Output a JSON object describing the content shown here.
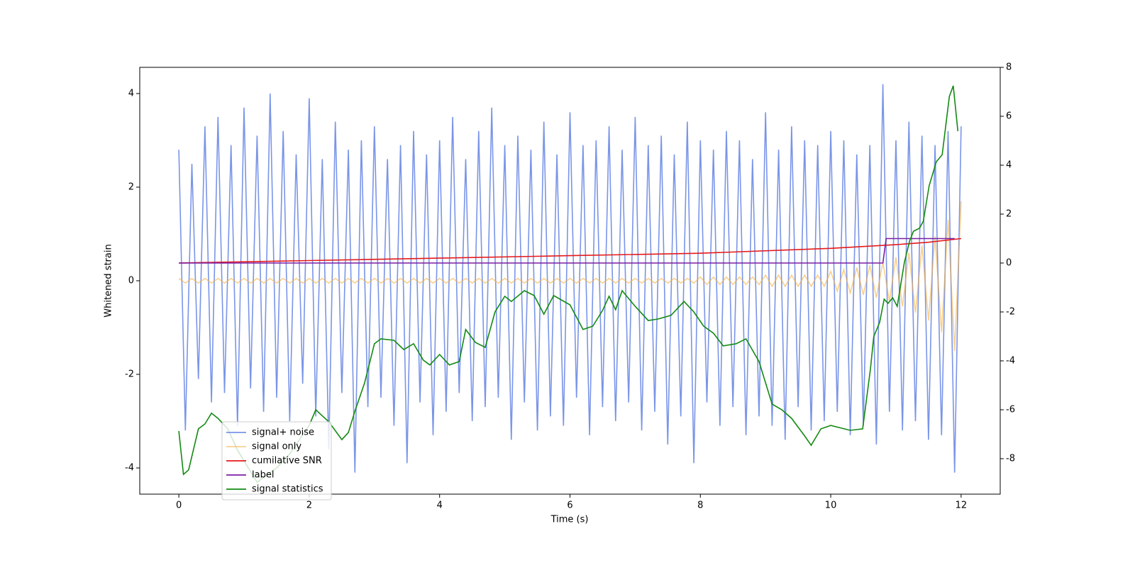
{
  "chart_data": {
    "type": "line",
    "xlabel": "Time (s)",
    "ylabel": "Whitened strain",
    "xlim": [
      -0.6,
      12.6
    ],
    "ylim": [
      -4.56,
      4.56
    ],
    "y2lim": [
      -9.45,
      8.0
    ],
    "xticks": [
      0,
      2,
      4,
      6,
      8,
      10,
      12
    ],
    "yticks": [
      -4,
      -2,
      0,
      2,
      4
    ],
    "y2ticks": [
      -8,
      -6,
      -4,
      -2,
      0,
      2,
      4,
      6,
      8
    ],
    "legend": "lower left",
    "x": [
      0,
      0.1,
      0.2,
      0.3,
      0.4,
      0.5,
      0.6,
      0.7,
      0.8,
      0.9,
      1,
      1.1,
      1.2,
      1.3,
      1.4,
      1.5,
      1.6,
      1.7,
      1.8,
      1.9,
      2,
      2.1,
      2.2,
      2.3,
      2.4,
      2.5,
      2.6,
      2.7,
      2.8,
      2.9,
      3,
      3.1,
      3.2,
      3.3,
      3.4,
      3.5,
      3.6,
      3.7,
      3.8,
      3.9,
      4,
      4.1,
      4.2,
      4.3,
      4.4,
      4.5,
      4.6,
      4.7,
      4.8,
      4.9,
      5,
      5.1,
      5.2,
      5.3,
      5.4,
      5.5,
      5.6,
      5.7,
      5.8,
      5.9,
      6,
      6.1,
      6.2,
      6.3,
      6.4,
      6.5,
      6.6,
      6.7,
      6.8,
      6.9,
      7,
      7.1,
      7.2,
      7.3,
      7.4,
      7.5,
      7.6,
      7.7,
      7.8,
      7.9,
      8,
      8.1,
      8.2,
      8.3,
      8.4,
      8.5,
      8.6,
      8.7,
      8.8,
      8.9,
      9,
      9.1,
      9.2,
      9.3,
      9.4,
      9.5,
      9.6,
      9.7,
      9.8,
      9.9,
      10,
      10.1,
      10.2,
      10.3,
      10.4,
      10.5,
      10.6,
      10.7,
      10.8,
      10.9,
      11,
      11.1,
      11.2,
      11.3,
      11.4,
      11.5,
      11.6,
      11.7,
      11.8,
      11.9,
      12
    ],
    "series": [
      {
        "name": "signal+ noise",
        "color": "#7a95e8",
        "values": [
          2.8,
          -3.2,
          2.5,
          -2.1,
          3.3,
          -2.6,
          3.5,
          -2.4,
          2.9,
          -3.1,
          3.7,
          -2.3,
          3.1,
          -2.8,
          4.0,
          -2.5,
          3.2,
          -3.0,
          2.7,
          -2.2,
          3.9,
          -2.9,
          2.6,
          -3.6,
          3.4,
          -2.4,
          2.8,
          -4.1,
          3.0,
          -2.7,
          3.3,
          -2.5,
          2.6,
          -3.1,
          2.9,
          -3.9,
          3.2,
          -2.6,
          2.7,
          -3.3,
          3.0,
          -2.8,
          3.5,
          -2.4,
          2.6,
          -3.0,
          3.2,
          -2.7,
          3.7,
          -2.5,
          2.9,
          -3.4,
          3.1,
          -2.6,
          2.8,
          -3.2,
          3.4,
          -2.9,
          2.7,
          -3.1,
          3.6,
          -2.5,
          2.9,
          -3.3,
          3.0,
          -2.7,
          3.3,
          -3.0,
          2.8,
          -2.6,
          3.5,
          -3.2,
          2.9,
          -2.8,
          3.1,
          -3.5,
          2.7,
          -2.9,
          3.4,
          -3.9,
          3.0,
          -2.6,
          2.8,
          -3.1,
          3.2,
          -2.7,
          3.0,
          -3.3,
          2.6,
          -2.9,
          3.6,
          -3.1,
          2.8,
          -3.4,
          3.3,
          -2.7,
          3.0,
          -3.2,
          2.9,
          -3.0,
          3.2,
          -2.8,
          3.0,
          -3.3,
          2.7,
          -3.1,
          2.9,
          -3.5,
          4.2,
          -2.8,
          3.0,
          -3.2,
          3.4,
          -3.0,
          3.1,
          -3.4,
          2.9,
          -3.3,
          3.2,
          -4.1,
          3.3
        ]
      },
      {
        "name": "signal only",
        "color": "#f5b041",
        "values": [
          0.05,
          -0.05,
          0.05,
          -0.05,
          0.05,
          -0.05,
          0.05,
          -0.05,
          0.05,
          -0.05,
          0.05,
          -0.05,
          0.05,
          -0.05,
          0.05,
          -0.05,
          0.05,
          -0.05,
          0.05,
          -0.05,
          0.05,
          -0.05,
          0.05,
          -0.05,
          0.05,
          -0.05,
          0.05,
          -0.05,
          0.05,
          -0.05,
          0.05,
          -0.05,
          0.05,
          -0.05,
          0.05,
          -0.05,
          0.05,
          -0.05,
          0.05,
          -0.05,
          0.05,
          -0.05,
          0.05,
          -0.05,
          0.05,
          -0.05,
          0.05,
          -0.05,
          0.05,
          -0.05,
          0.05,
          -0.05,
          0.05,
          -0.05,
          0.05,
          -0.05,
          0.05,
          -0.05,
          0.05,
          -0.05,
          0.05,
          -0.05,
          0.05,
          -0.05,
          0.05,
          -0.05,
          0.05,
          -0.05,
          0.05,
          -0.05,
          0.05,
          -0.05,
          0.05,
          -0.05,
          0.05,
          -0.05,
          0.05,
          -0.05,
          0.05,
          -0.05,
          0.08,
          -0.08,
          0.08,
          -0.08,
          0.08,
          -0.08,
          0.08,
          -0.08,
          0.08,
          -0.08,
          0.12,
          -0.12,
          0.12,
          -0.12,
          0.12,
          -0.12,
          0.12,
          -0.12,
          0.12,
          -0.12,
          0.2,
          -0.22,
          0.24,
          -0.26,
          0.28,
          -0.3,
          0.33,
          -0.36,
          0.4,
          -0.44,
          0.5,
          -0.55,
          0.6,
          -0.68,
          0.75,
          -0.85,
          0.95,
          -1.1,
          1.3,
          -1.5,
          1.7
        ]
      },
      {
        "name": "cumilative SNR",
        "color": "#e41a1c",
        "axis": "y2",
        "x": [
          0,
          2,
          4,
          6,
          8,
          10,
          11,
          11.5,
          12
        ],
        "values": [
          0,
          0.1,
          0.2,
          0.3,
          0.4,
          0.6,
          0.75,
          0.85,
          1.0
        ]
      },
      {
        "name": "label",
        "color": "#7b1fa2",
        "axis": "y2",
        "x": [
          0,
          10.8,
          10.85,
          11.9
        ],
        "values": [
          0,
          0,
          1,
          1
        ]
      },
      {
        "name": "signal statistics",
        "color": "#138a13",
        "axis": "y2",
        "x": [
          0,
          0.07,
          0.15,
          0.3,
          0.4,
          0.5,
          0.6,
          0.75,
          0.9,
          1.0,
          1.2,
          1.5,
          1.7,
          2.0,
          2.1,
          2.3,
          2.5,
          2.6,
          2.7,
          2.85,
          3.0,
          3.1,
          3.3,
          3.45,
          3.6,
          3.75,
          3.85,
          4.0,
          4.15,
          4.3,
          4.4,
          4.55,
          4.7,
          4.85,
          5.0,
          5.1,
          5.3,
          5.45,
          5.6,
          5.75,
          6.0,
          6.2,
          6.35,
          6.5,
          6.6,
          6.7,
          6.8,
          7.0,
          7.2,
          7.35,
          7.55,
          7.75,
          7.9,
          8.05,
          8.2,
          8.35,
          8.55,
          8.7,
          8.9,
          9.1,
          9.25,
          9.4,
          9.6,
          9.7,
          9.85,
          10.0,
          10.3,
          10.49,
          10.61,
          10.66,
          10.75,
          10.82,
          10.88,
          10.95,
          11.02,
          11.13,
          11.21,
          11.27,
          11.36,
          11.42,
          11.51,
          11.62,
          11.71,
          11.82,
          11.88,
          11.95
        ],
        "values": [
          -6.87,
          -8.64,
          -8.46,
          -6.78,
          -6.58,
          -6.14,
          -6.35,
          -6.78,
          -7.65,
          -8.09,
          -8.96,
          -8.38,
          -7.8,
          -6.64,
          -6.0,
          -6.49,
          -7.22,
          -6.93,
          -6.06,
          -4.9,
          -3.3,
          -3.1,
          -3.16,
          -3.54,
          -3.3,
          -3.97,
          -4.17,
          -3.74,
          -4.17,
          -4.03,
          -2.72,
          -3.25,
          -3.45,
          -2.0,
          -1.36,
          -1.57,
          -1.13,
          -1.33,
          -2.09,
          -1.33,
          -1.71,
          -2.72,
          -2.58,
          -1.94,
          -1.36,
          -1.91,
          -1.13,
          -1.77,
          -2.35,
          -2.29,
          -2.14,
          -1.57,
          -2.0,
          -2.58,
          -2.87,
          -3.39,
          -3.3,
          -3.1,
          -4.03,
          -5.77,
          -6.0,
          -6.35,
          -7.07,
          -7.45,
          -6.78,
          -6.64,
          -6.84,
          -6.78,
          -4.32,
          -3.01,
          -2.43,
          -1.48,
          -1.65,
          -1.42,
          -1.77,
          0.03,
          0.9,
          1.3,
          1.42,
          1.71,
          3.16,
          4.14,
          4.43,
          6.81,
          7.25,
          5.39
        ]
      }
    ]
  }
}
